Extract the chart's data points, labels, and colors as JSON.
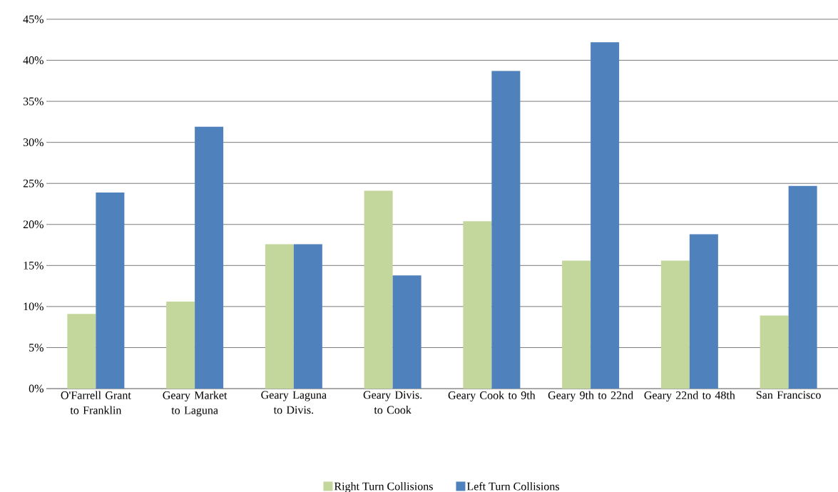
{
  "chart_data": {
    "type": "bar",
    "categories": [
      "O'Farrell Grant to Franklin",
      "Geary Market to Laguna",
      "Geary Laguna to Divis.",
      "Geary Divis. to Cook",
      "Geary Cook to 9th",
      "Geary 9th to 22nd",
      "Geary 22nd to 48th",
      "San Francisco"
    ],
    "series": [
      {
        "name": "Right Turn Collisions",
        "color": "#c3d69b",
        "values": [
          9.1,
          10.6,
          17.6,
          24.1,
          20.4,
          15.6,
          15.6,
          8.9
        ]
      },
      {
        "name": "Left Turn Collisions",
        "color": "#4f81bd",
        "values": [
          23.9,
          31.9,
          17.6,
          13.8,
          38.7,
          42.2,
          18.8,
          24.7
        ]
      }
    ],
    "ylim": [
      0,
      45
    ],
    "yticks": [
      {
        "value": 0,
        "label": "0%"
      },
      {
        "value": 5,
        "label": "5%"
      },
      {
        "value": 10,
        "label": "10%"
      },
      {
        "value": 15,
        "label": "15%"
      },
      {
        "value": 20,
        "label": "20%"
      },
      {
        "value": 25,
        "label": "25%"
      },
      {
        "value": 30,
        "label": "30%"
      },
      {
        "value": 35,
        "label": "35%"
      },
      {
        "value": 40,
        "label": "40%"
      },
      {
        "value": 45,
        "label": "45%"
      }
    ],
    "grid": "y",
    "legend": "bottom"
  }
}
